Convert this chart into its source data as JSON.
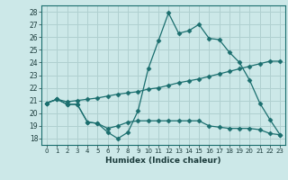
{
  "title": "",
  "xlabel": "Humidex (Indice chaleur)",
  "bg_color": "#cce8e8",
  "grid_color": "#b0d0d0",
  "line_color": "#1a6e6e",
  "xlim": [
    -0.5,
    23.5
  ],
  "ylim": [
    17.5,
    28.5
  ],
  "yticks": [
    18,
    19,
    20,
    21,
    22,
    23,
    24,
    25,
    26,
    27,
    28
  ],
  "xticks": [
    0,
    1,
    2,
    3,
    4,
    5,
    6,
    7,
    8,
    9,
    10,
    11,
    12,
    13,
    14,
    15,
    16,
    17,
    18,
    19,
    20,
    21,
    22,
    23
  ],
  "line1_x": [
    0,
    1,
    2,
    3,
    4,
    5,
    6,
    7,
    8,
    9,
    10,
    11,
    12,
    13,
    14,
    15,
    16,
    17,
    18,
    19,
    20,
    21,
    22,
    23
  ],
  "line1_y": [
    20.8,
    21.1,
    20.7,
    20.7,
    19.3,
    19.2,
    18.5,
    18.0,
    18.5,
    20.2,
    23.5,
    25.7,
    27.9,
    26.3,
    26.5,
    27.0,
    25.9,
    25.8,
    24.8,
    24.0,
    22.6,
    20.8,
    19.5,
    18.3
  ],
  "line2_x": [
    0,
    1,
    2,
    3,
    4,
    5,
    6,
    7,
    8,
    9,
    10,
    11,
    12,
    13,
    14,
    15,
    16,
    17,
    18,
    19,
    20,
    21,
    22,
    23
  ],
  "line2_y": [
    20.8,
    21.1,
    20.7,
    20.7,
    19.3,
    19.2,
    18.8,
    19.0,
    19.3,
    19.4,
    19.4,
    19.4,
    19.4,
    19.4,
    19.4,
    19.4,
    19.0,
    18.9,
    18.8,
    18.8,
    18.8,
    18.7,
    18.4,
    18.3
  ],
  "line3_x": [
    0,
    1,
    2,
    3,
    4,
    5,
    6,
    7,
    8,
    9,
    10,
    11,
    12,
    13,
    14,
    15,
    16,
    17,
    18,
    19,
    20,
    21,
    22,
    23
  ],
  "line3_y": [
    20.8,
    21.1,
    20.9,
    21.0,
    21.1,
    21.2,
    21.35,
    21.5,
    21.6,
    21.7,
    21.9,
    22.0,
    22.2,
    22.4,
    22.55,
    22.7,
    22.9,
    23.1,
    23.3,
    23.5,
    23.7,
    23.9,
    24.1,
    24.1
  ]
}
